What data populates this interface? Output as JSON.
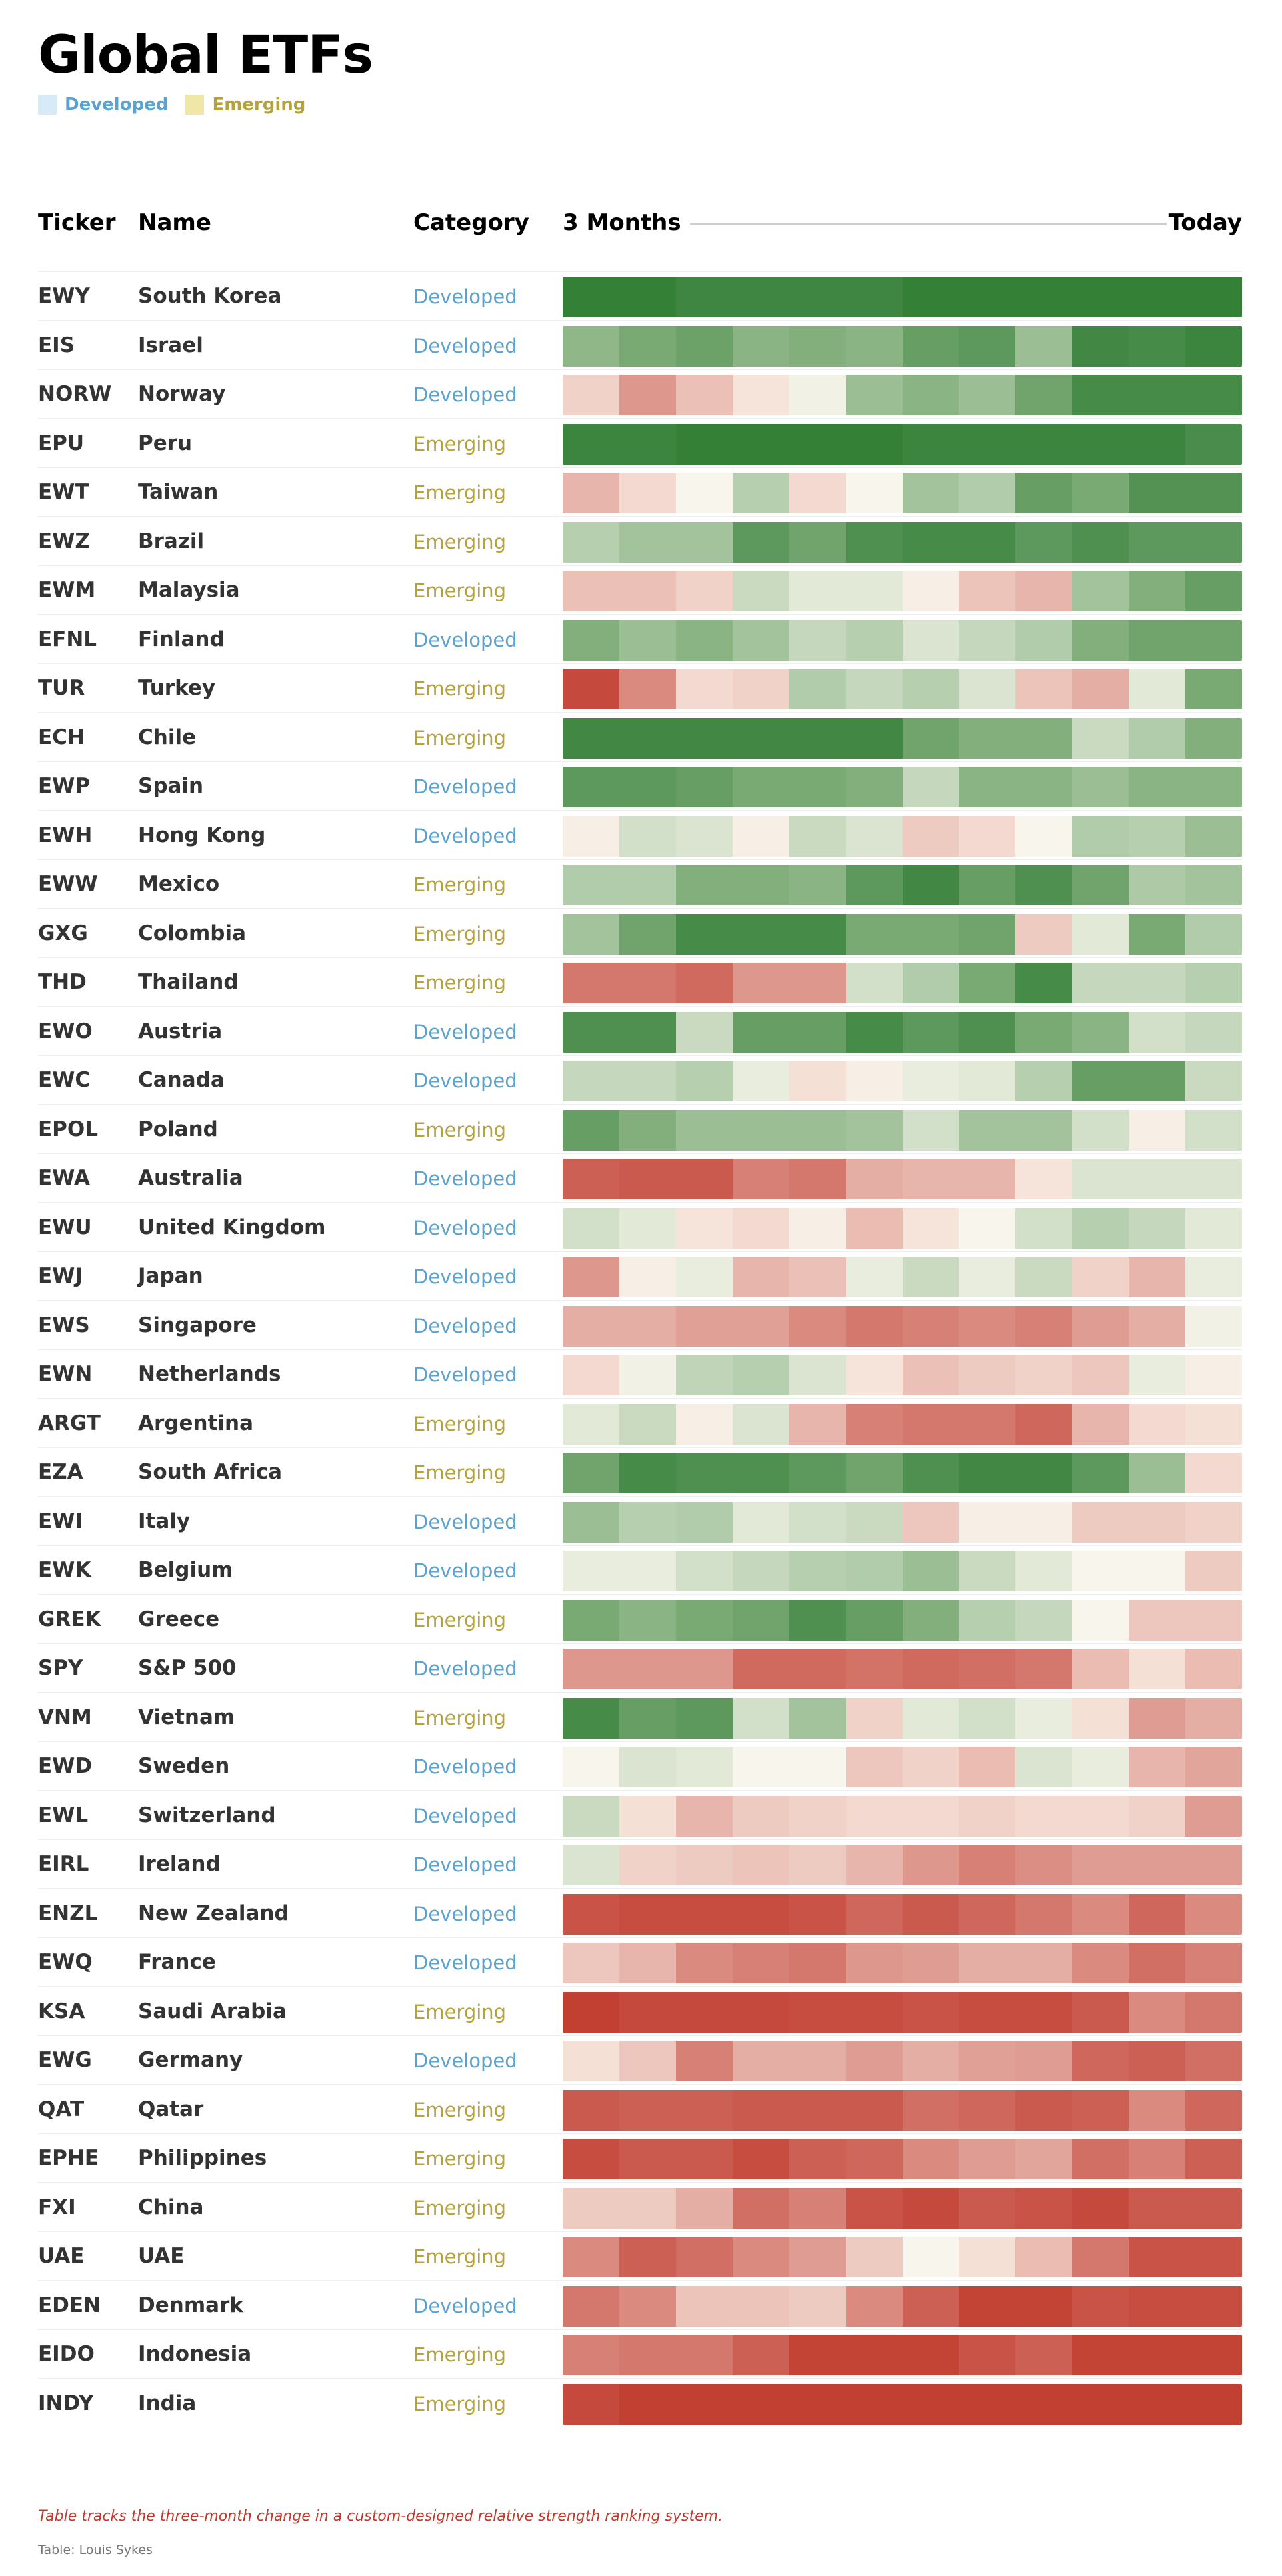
{
  "title": "Global ETFs",
  "legend": [
    {
      "label": "Developed",
      "swatch": "#d6eaf8",
      "color": "#5aa3d0"
    },
    {
      "label": "Emerging",
      "swatch": "#f0e6a8",
      "color": "#b5a33a"
    }
  ],
  "headers": {
    "ticker": "Ticker",
    "name": "Name",
    "category": "Category",
    "start": "3 Months",
    "end": "Today"
  },
  "footer": {
    "note": "Table tracks the three-month change in a custom-designed relative strength ranking system.",
    "source": "Table: Louis Sykes"
  },
  "chart_data": {
    "type": "heatmap",
    "scale": "relative strength: 0 = weakest (red), 50 = neutral, 100 = strongest (green)",
    "color_scale": {
      "low": "#c0392b",
      "mid": "#f8f6ec",
      "high": "#2e7d32"
    },
    "periods": 12,
    "rows": [
      {
        "ticker": "EWY",
        "name": "South Korea",
        "category": "Developed",
        "values": [
          98,
          98,
          94,
          94,
          94,
          94,
          98,
          98,
          98,
          98,
          98,
          98
        ]
      },
      {
        "ticker": "EIS",
        "name": "Israel",
        "category": "Developed",
        "values": [
          75,
          80,
          83,
          76,
          78,
          76,
          84,
          86,
          72,
          93,
          91,
          95
        ]
      },
      {
        "ticker": "NORW",
        "name": "Norway",
        "category": "Developed",
        "values": [
          40,
          25,
          35,
          45,
          52,
          72,
          76,
          72,
          82,
          91,
          91,
          91
        ]
      },
      {
        "ticker": "EPU",
        "name": "Peru",
        "category": "Emerging",
        "values": [
          95,
          95,
          98,
          98,
          98,
          98,
          95,
          95,
          95,
          95,
          95,
          90
        ]
      },
      {
        "ticker": "EWT",
        "name": "Taiwan",
        "category": "Emerging",
        "values": [
          32,
          42,
          50,
          66,
          42,
          50,
          70,
          67,
          84,
          80,
          88,
          88
        ]
      },
      {
        "ticker": "EWZ",
        "name": "Brazil",
        "category": "Emerging",
        "values": [
          66,
          70,
          70,
          86,
          82,
          89,
          91,
          91,
          86,
          89,
          86,
          86
        ]
      },
      {
        "ticker": "EWM",
        "name": "Malaysia",
        "category": "Emerging",
        "values": [
          35,
          35,
          40,
          62,
          56,
          56,
          48,
          36,
          32,
          70,
          78,
          84
        ]
      },
      {
        "ticker": "EFNL",
        "name": "Finland",
        "category": "Developed",
        "values": [
          78,
          72,
          76,
          70,
          63,
          66,
          58,
          63,
          67,
          78,
          82,
          82
        ]
      },
      {
        "ticker": "TUR",
        "name": "Turkey",
        "category": "Emerging",
        "values": [
          5,
          22,
          42,
          40,
          67,
          63,
          66,
          58,
          36,
          30,
          56,
          80
        ]
      },
      {
        "ticker": "ECH",
        "name": "Chile",
        "category": "Emerging",
        "values": [
          93,
          93,
          93,
          93,
          93,
          93,
          82,
          78,
          78,
          62,
          67,
          78
        ]
      },
      {
        "ticker": "EWP",
        "name": "Spain",
        "category": "Developed",
        "values": [
          86,
          86,
          84,
          80,
          80,
          78,
          63,
          76,
          76,
          72,
          76,
          76
        ]
      },
      {
        "ticker": "EWH",
        "name": "Hong Kong",
        "category": "Developed",
        "values": [
          48,
          60,
          58,
          48,
          62,
          58,
          38,
          42,
          50,
          67,
          66,
          72
        ]
      },
      {
        "ticker": "EWW",
        "name": "Mexico",
        "category": "Emerging",
        "values": [
          67,
          67,
          78,
          78,
          76,
          86,
          93,
          84,
          89,
          82,
          68,
          70
        ]
      },
      {
        "ticker": "GXG",
        "name": "Colombia",
        "category": "Emerging",
        "values": [
          70,
          82,
          91,
          91,
          91,
          80,
          80,
          82,
          38,
          56,
          80,
          67
        ]
      },
      {
        "ticker": "THD",
        "name": "Thailand",
        "category": "Emerging",
        "values": [
          18,
          18,
          15,
          25,
          25,
          60,
          67,
          80,
          91,
          63,
          63,
          66
        ]
      },
      {
        "ticker": "EWO",
        "name": "Austria",
        "category": "Developed",
        "values": [
          89,
          89,
          62,
          84,
          84,
          91,
          86,
          89,
          80,
          76,
          60,
          63
        ]
      },
      {
        "ticker": "EWC",
        "name": "Canada",
        "category": "Developed",
        "values": [
          63,
          63,
          66,
          54,
          44,
          48,
          54,
          56,
          66,
          84,
          84,
          62
        ]
      },
      {
        "ticker": "EPOL",
        "name": "Poland",
        "category": "Emerging",
        "values": [
          84,
          78,
          72,
          72,
          72,
          70,
          60,
          70,
          70,
          60,
          48,
          60
        ]
      },
      {
        "ticker": "EWA",
        "name": "Australia",
        "category": "Developed",
        "values": [
          12,
          10,
          10,
          20,
          18,
          30,
          32,
          32,
          45,
          58,
          58,
          58
        ]
      },
      {
        "ticker": "EWU",
        "name": "United Kingdom",
        "category": "Developed",
        "values": [
          60,
          56,
          45,
          42,
          48,
          34,
          45,
          50,
          60,
          66,
          63,
          56
        ]
      },
      {
        "ticker": "EWJ",
        "name": "Japan",
        "category": "Developed",
        "values": [
          25,
          48,
          54,
          32,
          35,
          54,
          62,
          54,
          62,
          40,
          32,
          54
        ]
      },
      {
        "ticker": "EWS",
        "name": "Singapore",
        "category": "Developed",
        "values": [
          30,
          30,
          27,
          27,
          22,
          18,
          20,
          22,
          20,
          26,
          30,
          52
        ]
      },
      {
        "ticker": "EWN",
        "name": "Netherlands",
        "category": "Developed",
        "values": [
          42,
          52,
          64,
          66,
          58,
          45,
          35,
          38,
          40,
          37,
          54,
          48
        ]
      },
      {
        "ticker": "ARGT",
        "name": "Argentina",
        "category": "Emerging",
        "values": [
          56,
          62,
          48,
          58,
          32,
          20,
          18,
          18,
          14,
          32,
          42,
          44
        ]
      },
      {
        "ticker": "EZA",
        "name": "South Africa",
        "category": "Emerging",
        "values": [
          82,
          91,
          89,
          89,
          86,
          82,
          89,
          93,
          93,
          86,
          72,
          42
        ]
      },
      {
        "ticker": "EWI",
        "name": "Italy",
        "category": "Developed",
        "values": [
          72,
          66,
          67,
          56,
          60,
          62,
          37,
          48,
          48,
          38,
          38,
          40
        ]
      },
      {
        "ticker": "EWK",
        "name": "Belgium",
        "category": "Developed",
        "values": [
          54,
          54,
          60,
          63,
          66,
          67,
          72,
          62,
          56,
          50,
          50,
          38
        ]
      },
      {
        "ticker": "GREK",
        "name": "Greece",
        "category": "Emerging",
        "values": [
          80,
          76,
          80,
          82,
          89,
          84,
          78,
          66,
          63,
          50,
          37,
          37
        ]
      },
      {
        "ticker": "SPY",
        "name": "S&P 500",
        "category": "Developed",
        "values": [
          25,
          25,
          25,
          15,
          15,
          17,
          15,
          16,
          18,
          34,
          44,
          34
        ]
      },
      {
        "ticker": "VNM",
        "name": "Vietnam",
        "category": "Emerging",
        "values": [
          91,
          84,
          86,
          60,
          70,
          40,
          56,
          60,
          54,
          44,
          26,
          30
        ]
      },
      {
        "ticker": "EWD",
        "name": "Sweden",
        "category": "Developed",
        "values": [
          50,
          58,
          56,
          50,
          50,
          37,
          40,
          34,
          58,
          54,
          32,
          28
        ]
      },
      {
        "ticker": "EWL",
        "name": "Switzerland",
        "category": "Developed",
        "values": [
          62,
          44,
          32,
          38,
          40,
          42,
          42,
          40,
          42,
          42,
          40,
          26
        ]
      },
      {
        "ticker": "EIRL",
        "name": "Ireland",
        "category": "Developed",
        "values": [
          58,
          40,
          38,
          36,
          38,
          32,
          25,
          20,
          23,
          26,
          26,
          26
        ]
      },
      {
        "ticker": "ENZL",
        "name": "New Zealand",
        "category": "Developed",
        "values": [
          8,
          6,
          6,
          6,
          8,
          14,
          10,
          14,
          18,
          22,
          14,
          22
        ]
      },
      {
        "ticker": "EWQ",
        "name": "France",
        "category": "Developed",
        "values": [
          37,
          32,
          22,
          20,
          18,
          25,
          26,
          30,
          30,
          22,
          16,
          20
        ]
      },
      {
        "ticker": "KSA",
        "name": "Saudi Arabia",
        "category": "Emerging",
        "values": [
          2,
          5,
          5,
          5,
          6,
          6,
          8,
          6,
          6,
          10,
          22,
          18
        ]
      },
      {
        "ticker": "EWG",
        "name": "Germany",
        "category": "Developed",
        "values": [
          44,
          37,
          20,
          30,
          30,
          26,
          30,
          27,
          26,
          14,
          12,
          16
        ]
      },
      {
        "ticker": "QAT",
        "name": "Qatar",
        "category": "Emerging",
        "values": [
          10,
          12,
          12,
          10,
          10,
          10,
          16,
          14,
          10,
          12,
          22,
          14
        ]
      },
      {
        "ticker": "EPHE",
        "name": "Philippines",
        "category": "Emerging",
        "values": [
          6,
          10,
          10,
          6,
          12,
          14,
          22,
          26,
          28,
          16,
          20,
          12
        ]
      },
      {
        "ticker": "FXI",
        "name": "China",
        "category": "Emerging",
        "values": [
          38,
          38,
          30,
          16,
          20,
          8,
          5,
          10,
          8,
          5,
          10,
          10
        ]
      },
      {
        "ticker": "UAE",
        "name": "UAE",
        "category": "Emerging",
        "values": [
          22,
          12,
          16,
          22,
          26,
          38,
          50,
          44,
          34,
          18,
          8,
          8
        ]
      },
      {
        "ticker": "EDEN",
        "name": "Denmark",
        "category": "Developed",
        "values": [
          18,
          22,
          36,
          36,
          38,
          22,
          12,
          3,
          3,
          8,
          6,
          6
        ]
      },
      {
        "ticker": "EIDO",
        "name": "Indonesia",
        "category": "Emerging",
        "values": [
          20,
          18,
          18,
          12,
          3,
          3,
          3,
          8,
          12,
          3,
          3,
          3
        ]
      },
      {
        "ticker": "INDY",
        "name": "India",
        "category": "Emerging",
        "values": [
          5,
          2,
          2,
          2,
          2,
          2,
          2,
          2,
          2,
          2,
          2,
          2
        ]
      }
    ]
  }
}
